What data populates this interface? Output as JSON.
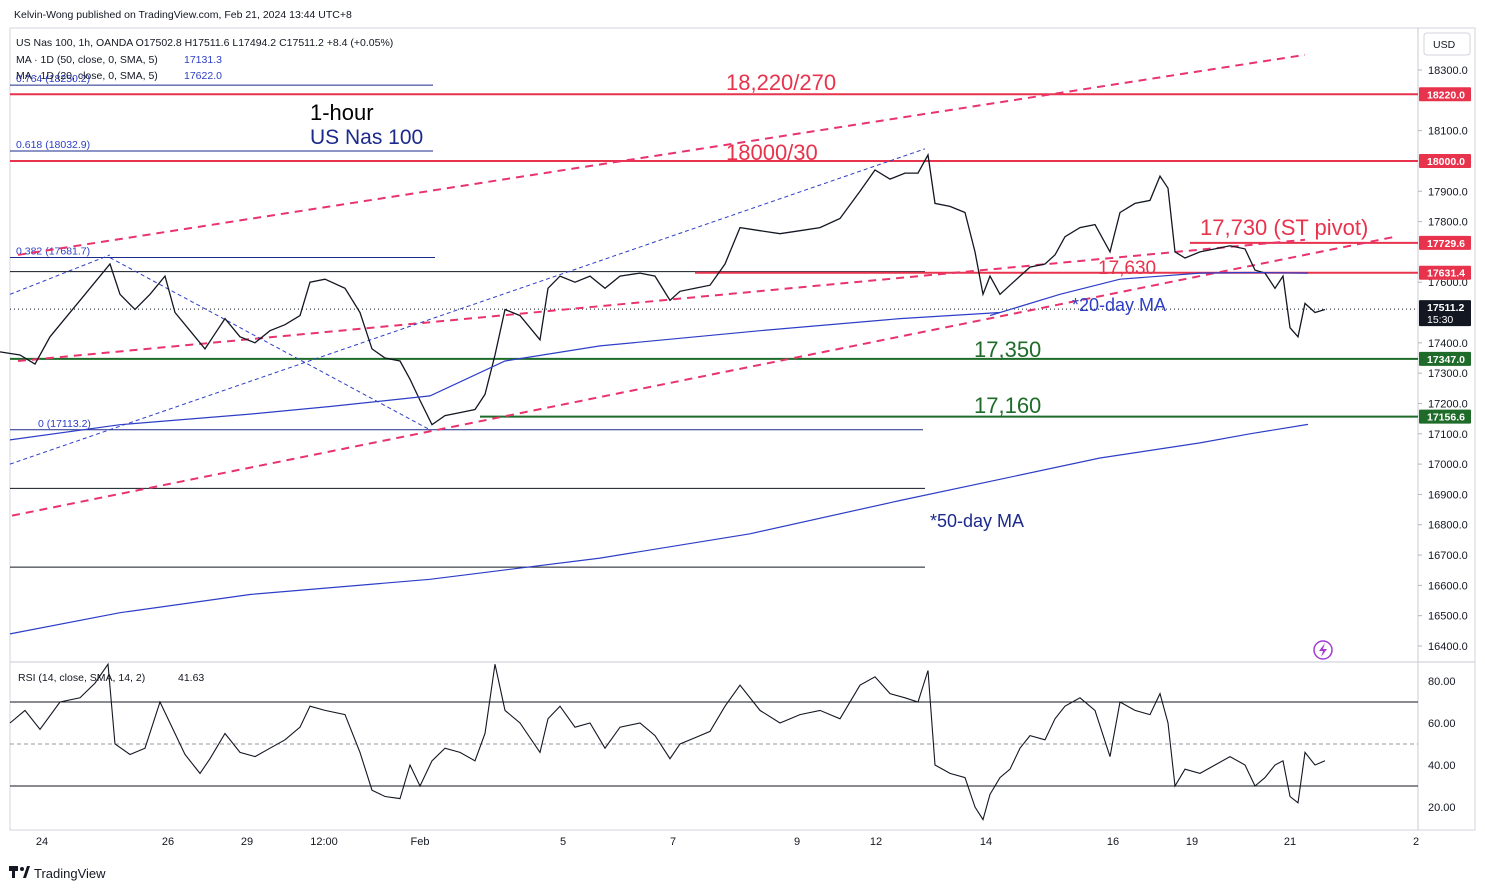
{
  "publisher": "Kelvin-Wong published on TradingView.com, Feb 21, 2024 13:44 UTC+8",
  "legend": {
    "symbol_line": "US Nas 100, 1h, OANDA  O17502.8  H17511.6  L17494.2  C17511.2  +8.4 (+0.05%)",
    "ma1_label": "MA · 1D (50, close, 0, SMA, 5)",
    "ma1_value": "17131.3",
    "ma2_label": "MA · 1D (20, close, 0, SMA, 5)",
    "ma2_value": "17622.0"
  },
  "colors": {
    "red_level": "#e8334d",
    "green_level": "#1e6b2a",
    "price_tag": "#131722",
    "ma_line": "#2d3ec7",
    "trendline_dash": "#e8336c",
    "channel_dash": "#2d3ec7"
  },
  "chart_data": [
    {
      "type": "line",
      "title": "US Nas 100",
      "subtitle": "1-hour",
      "currency": "USD",
      "ylim": [
        16360,
        18360
      ],
      "y_ticks": [
        "18300.0",
        "18100.0",
        "17900.0",
        "17800.0",
        "17600.0",
        "17400.0",
        "17300.0",
        "17200.0",
        "17100.0",
        "17000.0",
        "16900.0",
        "16800.0",
        "16700.0",
        "16600.0",
        "16500.0",
        "16400.0"
      ],
      "x_ticks": [
        "24",
        "26",
        "29",
        "12:00",
        "Feb",
        "5",
        "7",
        "9",
        "12",
        "14",
        "16",
        "19",
        "21",
        "2"
      ],
      "price_tags": [
        {
          "value": 18220.0,
          "text": "18220.0",
          "color": "#e8334d"
        },
        {
          "value": 18000.0,
          "text": "18000.0",
          "color": "#e8334d"
        },
        {
          "value": 17729.6,
          "text": "17729.6",
          "color": "#e8334d"
        },
        {
          "value": 17631.4,
          "text": "17631.4",
          "color": "#e8334d"
        },
        {
          "value": 17511.2,
          "text": "17511.2",
          "subtext": "15:30",
          "color": "#131722"
        },
        {
          "value": 17347.0,
          "text": "17347.0",
          "color": "#1e6b2a"
        },
        {
          "value": 17156.6,
          "text": "17156.6",
          "color": "#1e6b2a"
        }
      ],
      "fib_levels": [
        {
          "label": "0.764 (18250.2)",
          "value": 18250.2
        },
        {
          "label": "0.618 (18032.9)",
          "value": 18032.9
        },
        {
          "label": "0.382 (17681.7)",
          "value": 17681.7
        },
        {
          "label": "0 (17113.2)",
          "value": 17113.2
        }
      ],
      "annotations": {
        "r1": "18,220/270",
        "r2": "18000/30",
        "pivot": "17,730 (ST pivot)",
        "r3": "17,630",
        "ma20": "*20-day MA",
        "s1": "17,350",
        "s2": "17,160",
        "ma50": "*50-day MA",
        "header_line1": "1-hour",
        "header_line2": "US Nas 100"
      },
      "series": [
        {
          "name": "US Nas 100",
          "points": [
            [
              0,
              17370
            ],
            [
              20,
              17360
            ],
            [
              35,
              17330
            ],
            [
              50,
              17420
            ],
            [
              65,
              17480
            ],
            [
              80,
              17540
            ],
            [
              95,
              17600
            ],
            [
              110,
              17660
            ],
            [
              120,
              17560
            ],
            [
              135,
              17510
            ],
            [
              150,
              17560
            ],
            [
              165,
              17620
            ],
            [
              175,
              17500
            ],
            [
              190,
              17440
            ],
            [
              205,
              17380
            ],
            [
              215,
              17430
            ],
            [
              225,
              17480
            ],
            [
              240,
              17420
            ],
            [
              255,
              17400
            ],
            [
              270,
              17440
            ],
            [
              285,
              17460
            ],
            [
              300,
              17490
            ],
            [
              310,
              17600
            ],
            [
              325,
              17610
            ],
            [
              345,
              17580
            ],
            [
              360,
              17500
            ],
            [
              372,
              17380
            ],
            [
              385,
              17350
            ],
            [
              400,
              17340
            ],
            [
              410,
              17280
            ],
            [
              420,
              17210
            ],
            [
              432,
              17130
            ],
            [
              445,
              17160
            ],
            [
              460,
              17170
            ],
            [
              475,
              17180
            ],
            [
              485,
              17230
            ],
            [
              495,
              17360
            ],
            [
              505,
              17510
            ],
            [
              520,
              17490
            ],
            [
              540,
              17410
            ],
            [
              548,
              17580
            ],
            [
              560,
              17620
            ],
            [
              575,
              17600
            ],
            [
              590,
              17620
            ],
            [
              605,
              17580
            ],
            [
              620,
              17620
            ],
            [
              640,
              17630
            ],
            [
              655,
              17620
            ],
            [
              670,
              17540
            ],
            [
              680,
              17570
            ],
            [
              695,
              17580
            ],
            [
              710,
              17590
            ],
            [
              725,
              17660
            ],
            [
              740,
              17780
            ],
            [
              760,
              17770
            ],
            [
              780,
              17760
            ],
            [
              800,
              17770
            ],
            [
              820,
              17780
            ],
            [
              840,
              17810
            ],
            [
              860,
              17900
            ],
            [
              875,
              17970
            ],
            [
              890,
              17940
            ],
            [
              905,
              17960
            ],
            [
              918,
              17960
            ],
            [
              928,
              18020
            ],
            [
              935,
              17860
            ],
            [
              950,
              17850
            ],
            [
              965,
              17830
            ],
            [
              975,
              17700
            ],
            [
              983,
              17560
            ],
            [
              990,
              17620
            ],
            [
              1000,
              17560
            ],
            [
              1010,
              17590
            ],
            [
              1020,
              17620
            ],
            [
              1030,
              17650
            ],
            [
              1045,
              17660
            ],
            [
              1055,
              17690
            ],
            [
              1065,
              17750
            ],
            [
              1080,
              17780
            ],
            [
              1095,
              17790
            ],
            [
              1110,
              17700
            ],
            [
              1120,
              17830
            ],
            [
              1135,
              17860
            ],
            [
              1150,
              17870
            ],
            [
              1160,
              17950
            ],
            [
              1168,
              17910
            ],
            [
              1175,
              17700
            ],
            [
              1185,
              17680
            ],
            [
              1200,
              17700
            ],
            [
              1215,
              17710
            ],
            [
              1230,
              17720
            ],
            [
              1245,
              17710
            ],
            [
              1255,
              17640
            ],
            [
              1265,
              17630
            ],
            [
              1275,
              17580
            ],
            [
              1283,
              17620
            ],
            [
              1290,
              17450
            ],
            [
              1298,
              17420
            ],
            [
              1305,
              17530
            ],
            [
              1315,
              17500
            ],
            [
              1325,
              17510
            ]
          ]
        },
        {
          "name": "20-day MA",
          "points": [
            [
              990,
              17490
            ],
            [
              1060,
              17560
            ],
            [
              1120,
              17610
            ],
            [
              1200,
              17630
            ],
            [
              1250,
              17632
            ],
            [
              1308,
              17630
            ]
          ]
        },
        {
          "name": "50-day MA",
          "points": [
            [
              10,
              16440
            ],
            [
              120,
              16510
            ],
            [
              250,
              16570
            ],
            [
              430,
              16620
            ],
            [
              600,
              16690
            ],
            [
              750,
              16770
            ],
            [
              900,
              16880
            ],
            [
              1000,
              16950
            ],
            [
              1100,
              17020
            ],
            [
              1200,
              17070
            ],
            [
              1250,
              17100
            ],
            [
              1308,
              17131
            ]
          ]
        }
      ]
    },
    {
      "type": "line",
      "title": "RSI (14, close, SMA, 14, 2)",
      "value_label": "41.63",
      "ylim": [
        10,
        90
      ],
      "y_ticks": [
        "80.00",
        "60.00",
        "40.00",
        "20.00"
      ],
      "bands": [
        70,
        50,
        30
      ],
      "series": [
        {
          "name": "RSI",
          "points": [
            [
              10,
              60
            ],
            [
              25,
              66
            ],
            [
              40,
              57
            ],
            [
              60,
              70
            ],
            [
              80,
              72
            ],
            [
              95,
              79
            ],
            [
              108,
              88
            ],
            [
              115,
              50
            ],
            [
              130,
              45
            ],
            [
              145,
              48
            ],
            [
              160,
              70
            ],
            [
              170,
              60
            ],
            [
              185,
              45
            ],
            [
              200,
              36
            ],
            [
              210,
              43
            ],
            [
              225,
              55
            ],
            [
              240,
              46
            ],
            [
              255,
              44
            ],
            [
              270,
              48
            ],
            [
              285,
              52
            ],
            [
              300,
              58
            ],
            [
              310,
              68
            ],
            [
              325,
              66
            ],
            [
              345,
              64
            ],
            [
              360,
              46
            ],
            [
              372,
              28
            ],
            [
              385,
              25
            ],
            [
              400,
              24
            ],
            [
              410,
              40
            ],
            [
              420,
              30
            ],
            [
              432,
              42
            ],
            [
              445,
              48
            ],
            [
              460,
              46
            ],
            [
              475,
              42
            ],
            [
              485,
              55
            ],
            [
              495,
              88
            ],
            [
              505,
              66
            ],
            [
              520,
              60
            ],
            [
              540,
              46
            ],
            [
              548,
              62
            ],
            [
              560,
              68
            ],
            [
              575,
              58
            ],
            [
              590,
              60
            ],
            [
              605,
              48
            ],
            [
              620,
              58
            ],
            [
              640,
              60
            ],
            [
              655,
              54
            ],
            [
              670,
              43
            ],
            [
              680,
              50
            ],
            [
              695,
              53
            ],
            [
              710,
              56
            ],
            [
              725,
              68
            ],
            [
              740,
              78
            ],
            [
              760,
              66
            ],
            [
              780,
              60
            ],
            [
              800,
              64
            ],
            [
              820,
              66
            ],
            [
              840,
              62
            ],
            [
              860,
              78
            ],
            [
              875,
              82
            ],
            [
              890,
              74
            ],
            [
              905,
              72
            ],
            [
              918,
              70
            ],
            [
              928,
              85
            ],
            [
              935,
              40
            ],
            [
              950,
              36
            ],
            [
              965,
              34
            ],
            [
              975,
              20
            ],
            [
              983,
              14
            ],
            [
              990,
              26
            ],
            [
              1000,
              34
            ],
            [
              1010,
              38
            ],
            [
              1020,
              48
            ],
            [
              1030,
              54
            ],
            [
              1045,
              52
            ],
            [
              1055,
              62
            ],
            [
              1065,
              68
            ],
            [
              1080,
              72
            ],
            [
              1095,
              66
            ],
            [
              1110,
              44
            ],
            [
              1120,
              70
            ],
            [
              1135,
              66
            ],
            [
              1150,
              64
            ],
            [
              1160,
              74
            ],
            [
              1168,
              60
            ],
            [
              1175,
              30
            ],
            [
              1185,
              38
            ],
            [
              1200,
              36
            ],
            [
              1215,
              40
            ],
            [
              1230,
              44
            ],
            [
              1245,
              40
            ],
            [
              1255,
              30
            ],
            [
              1265,
              34
            ],
            [
              1275,
              40
            ],
            [
              1283,
              42
            ],
            [
              1290,
              25
            ],
            [
              1298,
              22
            ],
            [
              1305,
              46
            ],
            [
              1315,
              40
            ],
            [
              1325,
              42
            ]
          ]
        }
      ]
    }
  ],
  "footer_brand": "TradingView"
}
